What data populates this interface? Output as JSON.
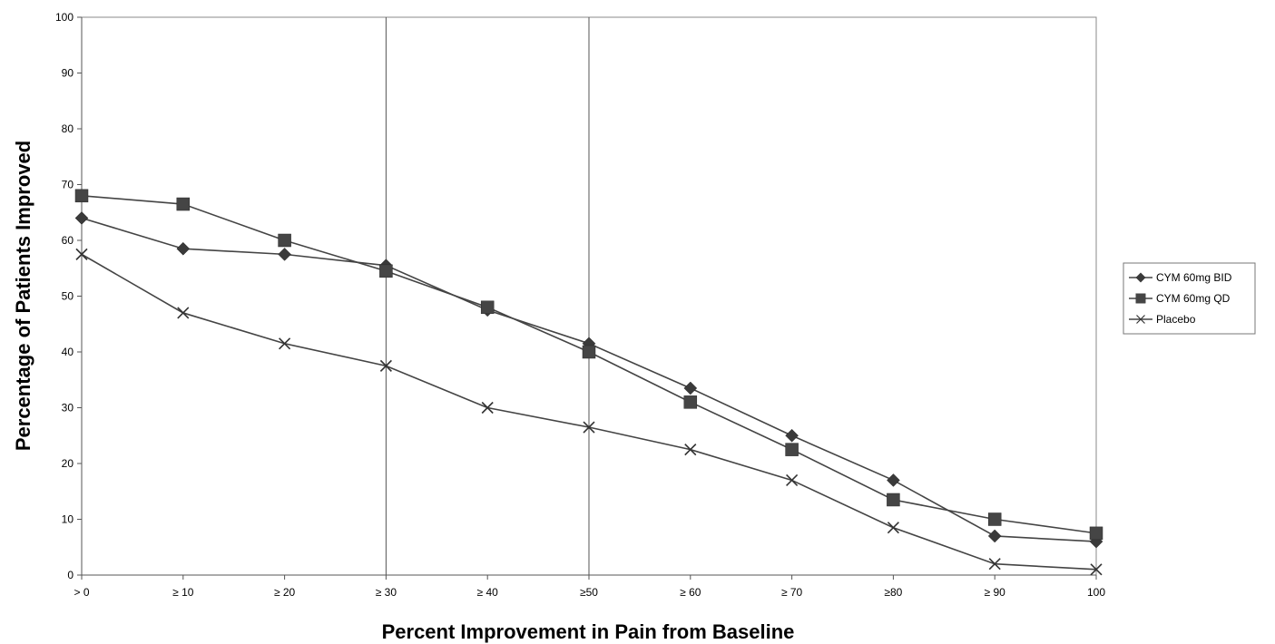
{
  "chart_data": {
    "type": "line",
    "title": "",
    "xlabel": "Percent Improvement in Pain from Baseline",
    "ylabel": "Percentage of Patients Improved",
    "categories": [
      "> 0",
      "≥ 10",
      "≥ 20",
      "≥ 30",
      "≥ 40",
      "≥50",
      "≥ 60",
      "≥ 70",
      "≥80",
      "≥ 90",
      "100"
    ],
    "ylim": [
      0,
      100
    ],
    "yticks": [
      0,
      10,
      20,
      30,
      40,
      50,
      60,
      70,
      80,
      90,
      100
    ],
    "grid": false,
    "reference_lines_at": [
      "≥ 30",
      "≥50"
    ],
    "legend_position": "right",
    "series": [
      {
        "name": "CYM 60mg BID",
        "marker": "diamond",
        "values": [
          64,
          58.5,
          57.5,
          55.5,
          47.5,
          41.5,
          33.5,
          25,
          17,
          7,
          6
        ]
      },
      {
        "name": "CYM 60mg QD",
        "marker": "square",
        "values": [
          68,
          66.5,
          60,
          54.5,
          48,
          40,
          31,
          22.5,
          13.5,
          10,
          7.5
        ]
      },
      {
        "name": "Placebo",
        "marker": "x",
        "values": [
          57.5,
          47,
          41.5,
          37.5,
          30,
          26.5,
          22.5,
          17,
          8.5,
          2,
          1
        ]
      }
    ]
  }
}
